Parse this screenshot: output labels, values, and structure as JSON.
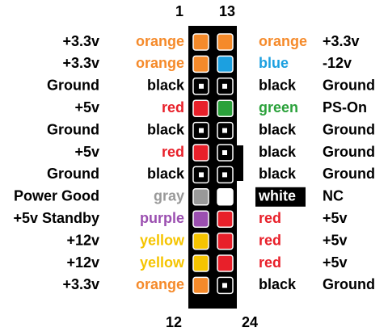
{
  "pin_numbers_top": [
    "1",
    "13"
  ],
  "pin_numbers_bottom": [
    "12",
    "24"
  ],
  "rows": [
    {
      "left": {
        "signal": "+3.3v",
        "wire": "orange",
        "color": "#f58a2a"
      },
      "right": {
        "signal": "+3.3v",
        "wire": "orange",
        "color": "#f58a2a"
      }
    },
    {
      "left": {
        "signal": "+3.3v",
        "wire": "orange",
        "color": "#f58a2a"
      },
      "right": {
        "signal": "-12v",
        "wire": "blue",
        "color": "#1ca0e0"
      }
    },
    {
      "left": {
        "signal": "Ground",
        "wire": "black",
        "color": "#000000"
      },
      "right": {
        "signal": "Ground",
        "wire": "black",
        "color": "#000000"
      }
    },
    {
      "left": {
        "signal": "+5v",
        "wire": "red",
        "color": "#e8202a"
      },
      "right": {
        "signal": "PS-On",
        "wire": "green",
        "color": "#2aa13a"
      }
    },
    {
      "left": {
        "signal": "Ground",
        "wire": "black",
        "color": "#000000"
      },
      "right": {
        "signal": "Ground",
        "wire": "black",
        "color": "#000000"
      }
    },
    {
      "left": {
        "signal": "+5v",
        "wire": "red",
        "color": "#e8202a"
      },
      "right": {
        "signal": "Ground",
        "wire": "black",
        "color": "#000000"
      }
    },
    {
      "left": {
        "signal": "Ground",
        "wire": "black",
        "color": "#000000"
      },
      "right": {
        "signal": "Ground",
        "wire": "black",
        "color": "#000000"
      }
    },
    {
      "left": {
        "signal": "Power Good",
        "wire": "gray",
        "color": "#999999"
      },
      "right": {
        "signal": "NC",
        "wire": "white",
        "color": "#ffffff"
      }
    },
    {
      "left": {
        "signal": "+5v Standby",
        "wire": "purple",
        "color": "#9b4fb0"
      },
      "right": {
        "signal": "+5v",
        "wire": "red",
        "color": "#e8202a"
      }
    },
    {
      "left": {
        "signal": "+12v",
        "wire": "yellow",
        "color": "#f5c400"
      },
      "right": {
        "signal": "+5v",
        "wire": "red",
        "color": "#e8202a"
      }
    },
    {
      "left": {
        "signal": "+12v",
        "wire": "yellow",
        "color": "#f5c400"
      },
      "right": {
        "signal": "+5v",
        "wire": "red",
        "color": "#e8202a"
      }
    },
    {
      "left": {
        "signal": "+3.3v",
        "wire": "orange",
        "color": "#f58a2a"
      },
      "right": {
        "signal": "Ground",
        "wire": "black",
        "color": "#000000"
      }
    }
  ]
}
